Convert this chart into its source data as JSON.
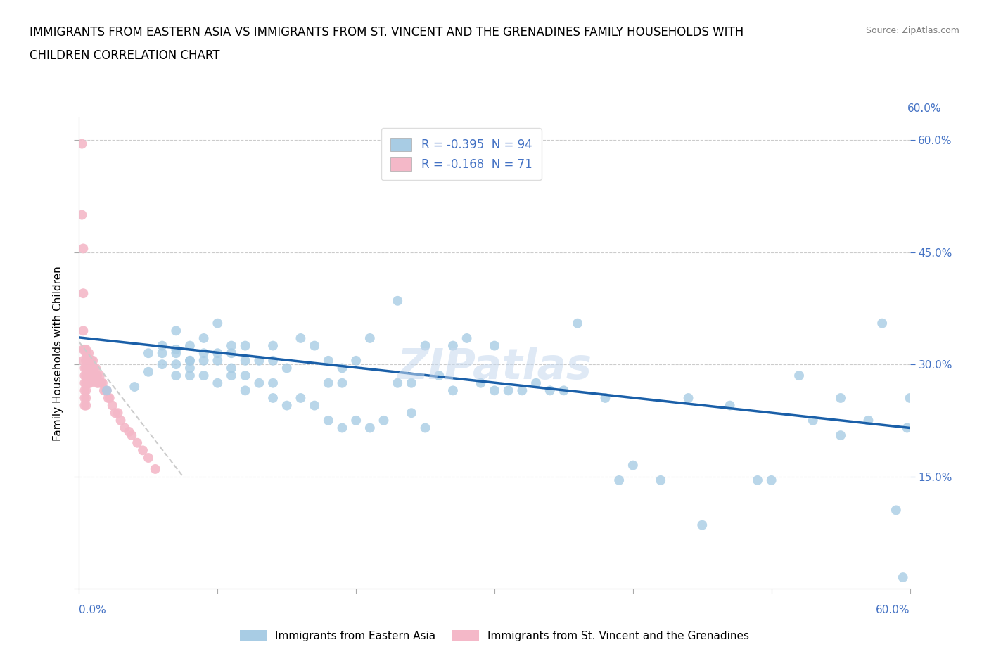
{
  "title_line1": "IMMIGRANTS FROM EASTERN ASIA VS IMMIGRANTS FROM ST. VINCENT AND THE GRENADINES FAMILY HOUSEHOLDS WITH",
  "title_line2": "CHILDREN CORRELATION CHART",
  "source_text": "Source: ZipAtlas.com",
  "ylabel": "Family Households with Children",
  "xlim": [
    0,
    0.6
  ],
  "ylim": [
    0,
    0.63
  ],
  "xticks": [
    0.0,
    0.1,
    0.2,
    0.3,
    0.4,
    0.5,
    0.6
  ],
  "yticks": [
    0.0,
    0.15,
    0.3,
    0.45,
    0.6
  ],
  "grid_color": "#cccccc",
  "blue_color": "#a8cce4",
  "pink_color": "#f4b8c8",
  "blue_line_color": "#1a5fa8",
  "pink_line_color": "#cccccc",
  "R_blue": -0.395,
  "N_blue": 94,
  "R_pink": -0.168,
  "N_pink": 71,
  "legend_label_blue": "Immigrants from Eastern Asia",
  "legend_label_pink": "Immigrants from St. Vincent and the Grenadines",
  "watermark": "ZIPatlas",
  "blue_scatter_x": [
    0.02,
    0.04,
    0.05,
    0.05,
    0.06,
    0.06,
    0.06,
    0.07,
    0.07,
    0.07,
    0.07,
    0.07,
    0.08,
    0.08,
    0.08,
    0.08,
    0.08,
    0.09,
    0.09,
    0.09,
    0.09,
    0.1,
    0.1,
    0.1,
    0.1,
    0.11,
    0.11,
    0.11,
    0.11,
    0.12,
    0.12,
    0.12,
    0.12,
    0.13,
    0.13,
    0.14,
    0.14,
    0.14,
    0.14,
    0.15,
    0.15,
    0.16,
    0.16,
    0.17,
    0.17,
    0.18,
    0.18,
    0.18,
    0.19,
    0.19,
    0.19,
    0.2,
    0.2,
    0.21,
    0.21,
    0.22,
    0.23,
    0.23,
    0.24,
    0.24,
    0.25,
    0.25,
    0.26,
    0.27,
    0.27,
    0.28,
    0.29,
    0.3,
    0.3,
    0.31,
    0.32,
    0.33,
    0.34,
    0.35,
    0.36,
    0.38,
    0.39,
    0.4,
    0.42,
    0.44,
    0.45,
    0.47,
    0.49,
    0.5,
    0.52,
    0.53,
    0.55,
    0.55,
    0.57,
    0.58,
    0.59,
    0.595,
    0.598,
    0.6
  ],
  "blue_scatter_y": [
    0.265,
    0.27,
    0.29,
    0.315,
    0.3,
    0.315,
    0.325,
    0.285,
    0.3,
    0.315,
    0.32,
    0.345,
    0.285,
    0.295,
    0.305,
    0.305,
    0.325,
    0.285,
    0.305,
    0.315,
    0.335,
    0.275,
    0.305,
    0.315,
    0.355,
    0.285,
    0.295,
    0.315,
    0.325,
    0.265,
    0.285,
    0.305,
    0.325,
    0.275,
    0.305,
    0.255,
    0.275,
    0.305,
    0.325,
    0.245,
    0.295,
    0.255,
    0.335,
    0.245,
    0.325,
    0.225,
    0.275,
    0.305,
    0.215,
    0.275,
    0.295,
    0.225,
    0.305,
    0.215,
    0.335,
    0.225,
    0.275,
    0.385,
    0.235,
    0.275,
    0.215,
    0.325,
    0.285,
    0.265,
    0.325,
    0.335,
    0.275,
    0.265,
    0.325,
    0.265,
    0.265,
    0.275,
    0.265,
    0.265,
    0.355,
    0.255,
    0.145,
    0.165,
    0.145,
    0.255,
    0.085,
    0.245,
    0.145,
    0.145,
    0.285,
    0.225,
    0.205,
    0.255,
    0.225,
    0.355,
    0.105,
    0.015,
    0.215,
    0.255
  ],
  "pink_scatter_x": [
    0.002,
    0.002,
    0.003,
    0.003,
    0.003,
    0.003,
    0.003,
    0.004,
    0.004,
    0.004,
    0.004,
    0.004,
    0.004,
    0.004,
    0.005,
    0.005,
    0.005,
    0.005,
    0.005,
    0.005,
    0.005,
    0.005,
    0.005,
    0.005,
    0.005,
    0.005,
    0.006,
    0.006,
    0.006,
    0.006,
    0.007,
    0.007,
    0.007,
    0.007,
    0.007,
    0.008,
    0.008,
    0.008,
    0.008,
    0.009,
    0.009,
    0.009,
    0.01,
    0.01,
    0.01,
    0.011,
    0.011,
    0.012,
    0.012,
    0.013,
    0.013,
    0.014,
    0.015,
    0.016,
    0.017,
    0.018,
    0.019,
    0.02,
    0.021,
    0.022,
    0.024,
    0.026,
    0.028,
    0.03,
    0.033,
    0.036,
    0.038,
    0.042,
    0.046,
    0.05,
    0.055
  ],
  "pink_scatter_y": [
    0.595,
    0.5,
    0.455,
    0.395,
    0.345,
    0.32,
    0.305,
    0.295,
    0.285,
    0.275,
    0.265,
    0.255,
    0.245,
    0.32,
    0.315,
    0.305,
    0.295,
    0.285,
    0.275,
    0.265,
    0.255,
    0.245,
    0.32,
    0.315,
    0.305,
    0.295,
    0.31,
    0.3,
    0.285,
    0.275,
    0.315,
    0.305,
    0.295,
    0.285,
    0.275,
    0.305,
    0.295,
    0.285,
    0.275,
    0.305,
    0.295,
    0.285,
    0.305,
    0.295,
    0.285,
    0.295,
    0.285,
    0.295,
    0.285,
    0.285,
    0.275,
    0.275,
    0.285,
    0.275,
    0.275,
    0.265,
    0.265,
    0.265,
    0.255,
    0.255,
    0.245,
    0.235,
    0.235,
    0.225,
    0.215,
    0.21,
    0.205,
    0.195,
    0.185,
    0.175,
    0.16
  ],
  "blue_line_x": [
    0.0,
    0.6
  ],
  "blue_line_y": [
    0.336,
    0.215
  ],
  "pink_line_x": [
    0.0,
    0.075
  ],
  "pink_line_y": [
    0.33,
    0.15
  ],
  "tick_color": "#4472c4",
  "right_ytick_labels": [
    "15.0%",
    "30.0%",
    "45.0%",
    "60.0%"
  ],
  "right_ytick_positions": [
    0.15,
    0.3,
    0.45,
    0.6
  ],
  "bottom_xtick_label_left": "0.0%",
  "bottom_xtick_label_right": "60.0%"
}
